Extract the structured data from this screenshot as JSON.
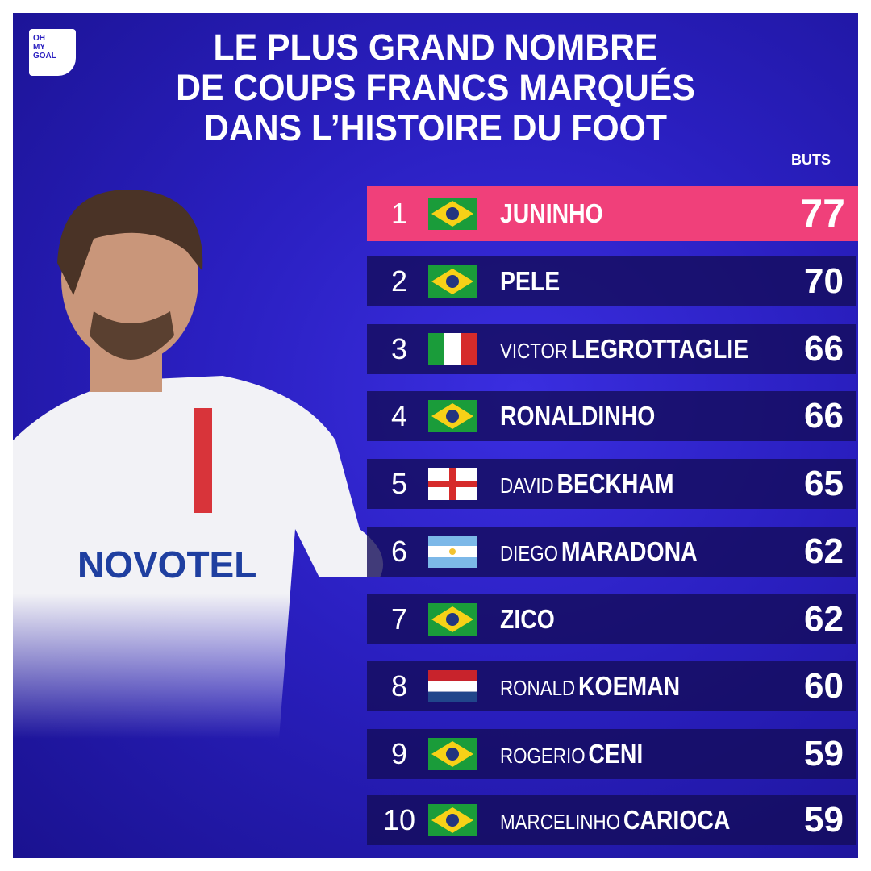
{
  "logo": [
    "OH",
    "MY",
    "GOAL"
  ],
  "title": [
    "LE PLUS GRAND NOMBRE",
    "DE COUPS FRANCS MARQUÉS",
    "DANS L’HISTOIRE DU FOOT"
  ],
  "column_header": "BUTS",
  "rows": [
    {
      "rank": 1,
      "last": "JUNINHO",
      "goals": 77
    },
    {
      "rank": 2,
      "last": "PELE",
      "goals": 70
    },
    {
      "rank": 3,
      "first": "VICTOR",
      "last": "LEGROTTAGLIE",
      "goals": 66
    },
    {
      "rank": 4,
      "last": "RONALDINHO",
      "goals": 66
    },
    {
      "rank": 5,
      "first": "DAVID",
      "last": "BECKHAM",
      "goals": 65
    },
    {
      "rank": 6,
      "first": "DIEGO",
      "last": "MARADONA",
      "goals": 62
    },
    {
      "rank": 7,
      "last": "ZICO",
      "goals": 62
    },
    {
      "rank": 8,
      "first": "RONALD",
      "last": "KOEMAN",
      "goals": 60
    },
    {
      "rank": 9,
      "first": "ROGERIO",
      "last": "CENI",
      "goals": 59
    },
    {
      "rank": 10,
      "first": "MARCELINHO",
      "last": "CARIOCA",
      "goals": 59
    }
  ]
}
